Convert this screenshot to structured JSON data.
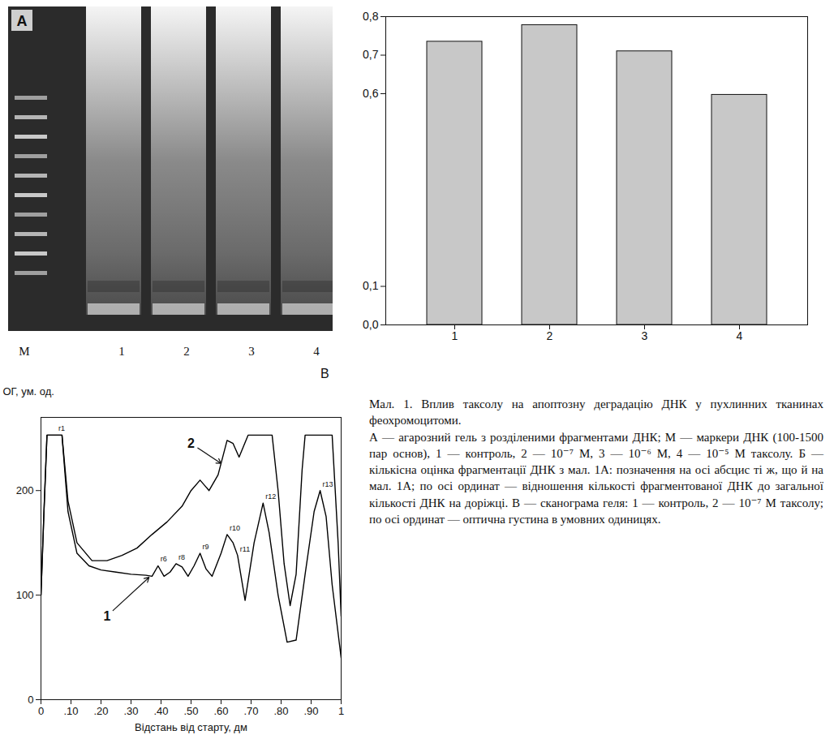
{
  "gel": {
    "panel_label": "А",
    "lanes": [
      "M",
      "1",
      "2",
      "3",
      "4"
    ]
  },
  "chart_data": [
    {
      "type": "bar",
      "categories": [
        "1",
        "2",
        "3",
        "4"
      ],
      "values": [
        0.735,
        0.778,
        0.71,
        0.597
      ],
      "color": "#c8c8c8",
      "ylim": [
        0,
        0.8
      ],
      "yticks": [
        {
          "value": 0,
          "label": "0,0"
        },
        {
          "value": 0.1,
          "label": "0,1"
        },
        {
          "value": 0.6,
          "label": "0,6"
        },
        {
          "value": 0.7,
          "label": "0,7"
        },
        {
          "value": 0.8,
          "label": "0,8"
        }
      ],
      "grid": false
    },
    {
      "type": "line",
      "panel_label": "В",
      "ylabel": "ОГ, ум. од.",
      "xlabel": "Відстань від старту, дм",
      "xlim": [
        0,
        1
      ],
      "ylim": [
        0,
        270
      ],
      "xticks": [
        0,
        {
          "value": 0.1,
          "label": ".10"
        },
        {
          "value": 0.2,
          "label": ".20"
        },
        {
          "value": 0.3,
          "label": ".30"
        },
        {
          "value": 0.4,
          "label": ".40"
        },
        {
          "value": 0.5,
          "label": ".50"
        },
        {
          "value": 0.6,
          "label": ".60"
        },
        {
          "value": 0.7,
          "label": ".70"
        },
        {
          "value": 0.8,
          "label": ".80"
        },
        {
          "value": 0.9,
          "label": ".90"
        },
        1
      ],
      "yticks": [
        0,
        100,
        200
      ],
      "grid": false,
      "series": [
        {
          "name": "1",
          "color": "#000000",
          "x": [
            0,
            0.01,
            0.02,
            0.07,
            0.09,
            0.12,
            0.16,
            0.2,
            0.25,
            0.3,
            0.35,
            0.37,
            0.39,
            0.41,
            0.43,
            0.45,
            0.47,
            0.49,
            0.51,
            0.53,
            0.55,
            0.57,
            0.6,
            0.62,
            0.64,
            0.655,
            0.68,
            0.71,
            0.74,
            0.76,
            0.79,
            0.82,
            0.85,
            0.88,
            0.91,
            0.93,
            0.95,
            0.97,
            1.0
          ],
          "values": [
            100,
            180,
            253,
            253,
            180,
            140,
            128,
            124,
            122,
            120,
            119,
            118,
            128,
            118,
            122,
            130,
            127,
            118,
            128,
            140,
            125,
            118,
            140,
            158,
            150,
            138,
            95,
            150,
            188,
            160,
            100,
            55,
            57,
            120,
            180,
            200,
            175,
            110,
            40
          ]
        },
        {
          "name": "2",
          "color": "#000000",
          "x": [
            0,
            0.01,
            0.02,
            0.07,
            0.09,
            0.12,
            0.17,
            0.22,
            0.27,
            0.32,
            0.37,
            0.42,
            0.47,
            0.5,
            0.53,
            0.56,
            0.59,
            0.62,
            0.64,
            0.66,
            0.69,
            0.77,
            0.79,
            0.81,
            0.83,
            0.85,
            0.87,
            0.88,
            0.97,
            0.99,
            1.0
          ],
          "values": [
            100,
            180,
            253,
            253,
            190,
            150,
            133,
            133,
            138,
            145,
            158,
            170,
            185,
            200,
            210,
            200,
            215,
            248,
            245,
            232,
            253,
            253,
            200,
            130,
            90,
            120,
            220,
            253,
            253,
            150,
            80
          ]
        }
      ],
      "annotations": [
        {
          "text": "r1",
          "x": 0.05,
          "y": 253
        },
        {
          "text": "r6",
          "x": 0.39,
          "y": 128
        },
        {
          "text": "r8",
          "x": 0.45,
          "y": 130
        },
        {
          "text": "r9",
          "x": 0.53,
          "y": 140
        },
        {
          "text": "r10",
          "x": 0.62,
          "y": 158
        },
        {
          "text": "r11",
          "x": 0.655,
          "y": 138
        },
        {
          "text": "r12",
          "x": 0.74,
          "y": 188
        },
        {
          "text": "r13",
          "x": 0.93,
          "y": 200
        }
      ],
      "curve_labels": [
        {
          "series": "1",
          "x": 0.22,
          "y": 80,
          "x_to": 0.36,
          "y_to": 117
        },
        {
          "series": "2",
          "x": 0.5,
          "y": 245,
          "x_to": 0.6,
          "y_to": 226
        }
      ]
    }
  ],
  "caption": [
    "Мал. 1. Вплив таксолу на апоптозну деградацію ДНК у пухлинних тканинах феохромоцитоми.",
    "А — агарозний гель з розділеними фрагментами ДНК; М — маркери ДНК (100-1500 пар основ), 1 — контроль, 2 — 10⁻⁷ М, 3 — 10⁻⁶ М, 4 — 10⁻⁵ М таксолу. Б — кількісна оцінка фрагментації ДНК з мал. 1А: позначення на осі абсцис ті ж, що й на мал. 1А; по осі ординат — відношення кількості фрагментованої ДНК до загальної кількості ДНК на доріжці. В — сканограма геля: 1 — контроль, 2 — 10⁻⁷ М таксолу; по осі ординат — оптична густина в умовних одиницях."
  ]
}
